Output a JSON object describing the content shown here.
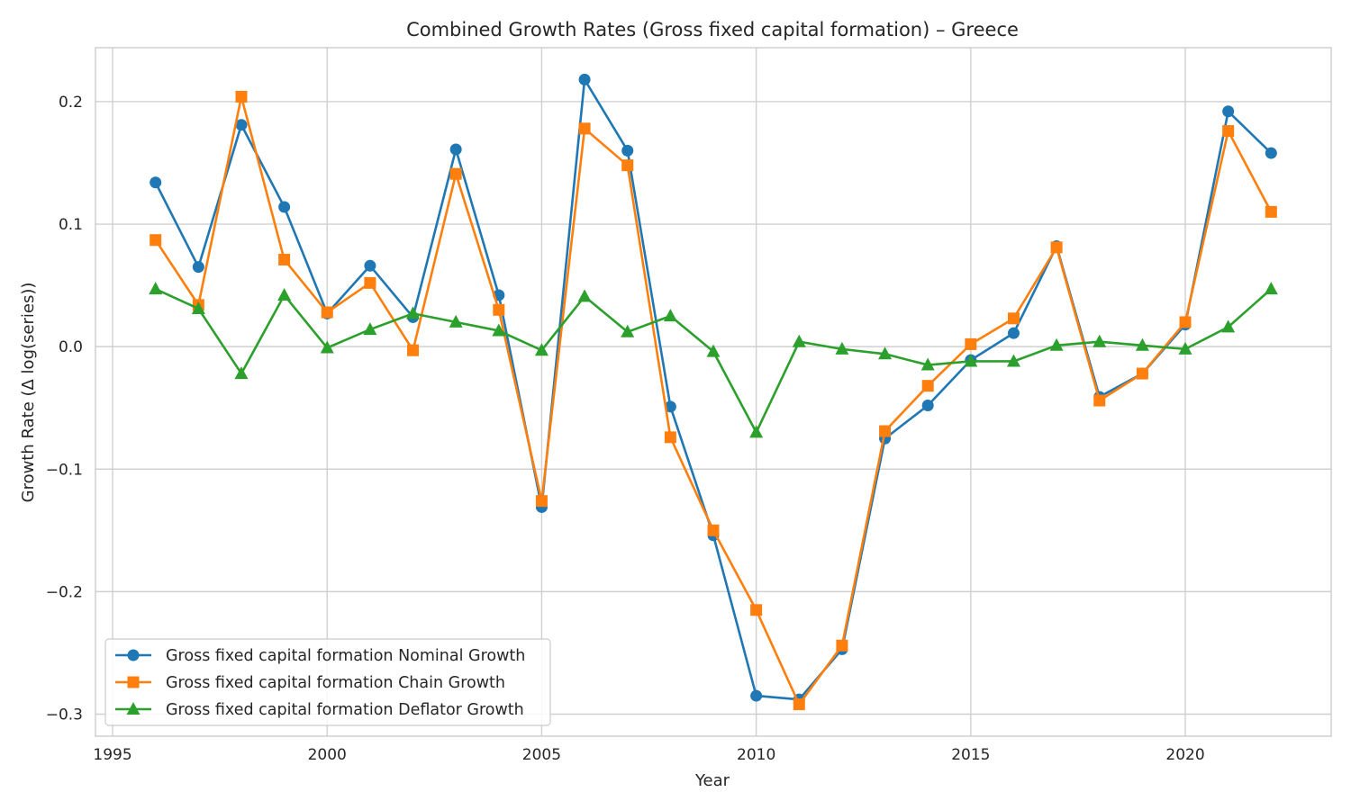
{
  "chart_data": {
    "type": "line",
    "title": "Combined Growth Rates (Gross fixed capital formation) – Greece",
    "xlabel": "Year",
    "ylabel": "Growth Rate (Δ log(series))",
    "xlim": [
      1994.6,
      2023.4
    ],
    "ylim": [
      -0.318,
      0.244
    ],
    "xticks": [
      1995,
      2000,
      2005,
      2010,
      2015,
      2020
    ],
    "xtick_labels": [
      "1995",
      "2000",
      "2005",
      "2010",
      "2015",
      "2020"
    ],
    "yticks": [
      -0.3,
      -0.2,
      -0.1,
      0.0,
      0.1,
      0.2
    ],
    "ytick_labels": [
      "−0.3",
      "−0.2",
      "−0.1",
      "0.0",
      "0.1",
      "0.2"
    ],
    "grid": true,
    "legend_position": "lower-left",
    "x": [
      1996,
      1997,
      1998,
      1999,
      2000,
      2001,
      2002,
      2003,
      2004,
      2005,
      2006,
      2007,
      2008,
      2009,
      2010,
      2011,
      2012,
      2013,
      2014,
      2015,
      2016,
      2017,
      2018,
      2019,
      2020,
      2021,
      2022
    ],
    "series": [
      {
        "name": "Gross fixed capital formation Nominal Growth",
        "color": "#1f77b4",
        "marker": "circle",
        "values": [
          0.134,
          0.065,
          0.181,
          0.114,
          0.027,
          0.066,
          0.024,
          0.161,
          0.042,
          -0.131,
          0.218,
          0.16,
          -0.049,
          -0.154,
          -0.285,
          -0.288,
          -0.247,
          -0.075,
          -0.048,
          -0.011,
          0.011,
          0.082,
          -0.041,
          -0.022,
          0.018,
          0.192,
          0.158
        ]
      },
      {
        "name": "Gross fixed capital formation Chain Growth",
        "color": "#ff7f0e",
        "marker": "square",
        "values": [
          0.087,
          0.034,
          0.204,
          0.071,
          0.028,
          0.052,
          -0.003,
          0.141,
          0.03,
          -0.126,
          0.178,
          0.148,
          -0.074,
          -0.15,
          -0.215,
          -0.292,
          -0.244,
          -0.069,
          -0.032,
          0.002,
          0.023,
          0.081,
          -0.044,
          -0.022,
          0.02,
          0.176,
          0.11
        ]
      },
      {
        "name": "Gross fixed capital formation Deflator Growth",
        "color": "#2ca02c",
        "marker": "triangle",
        "values": [
          0.047,
          0.031,
          -0.022,
          0.042,
          -0.001,
          0.014,
          0.027,
          0.02,
          0.013,
          -0.003,
          0.041,
          0.012,
          0.025,
          -0.004,
          -0.07,
          0.004,
          -0.002,
          -0.006,
          -0.015,
          -0.012,
          -0.012,
          0.001,
          0.004,
          0.001,
          -0.002,
          0.016,
          0.047
        ]
      }
    ]
  }
}
